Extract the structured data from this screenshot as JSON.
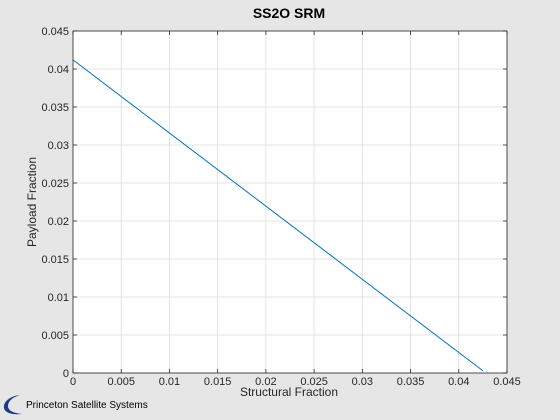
{
  "chart_data": {
    "type": "line",
    "title": "SS2O SRM",
    "xlabel": "Structural Fraction",
    "ylabel": "Payload Fraction",
    "xlim": [
      0,
      0.045
    ],
    "ylim": [
      0,
      0.045
    ],
    "xticks": [
      "0",
      "0.005",
      "0.01",
      "0.015",
      "0.02",
      "0.025",
      "0.03",
      "0.035",
      "0.04",
      "0.045"
    ],
    "yticks": [
      "0",
      "0.005",
      "0.01",
      "0.015",
      "0.02",
      "0.025",
      "0.03",
      "0.035",
      "0.04",
      "0.045"
    ],
    "grid": true,
    "legend": "none",
    "series": [
      {
        "x": [
          0,
          0.0425
        ],
        "y": [
          0.0412,
          0.0003
        ],
        "color": "#0072bd"
      }
    ]
  },
  "footer": {
    "logo_text": "Princeton Satellite Systems",
    "logo_color": "#1a3a8f"
  }
}
